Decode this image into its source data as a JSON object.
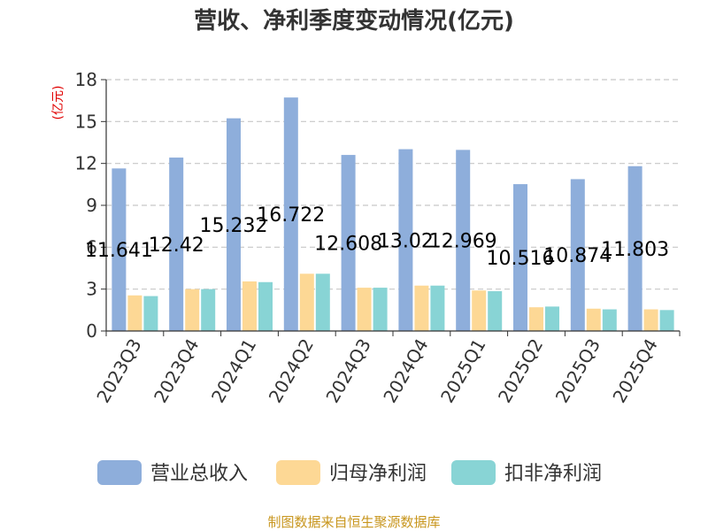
{
  "chart_data": {
    "type": "bar",
    "title": "营收、净利季度变动情况(亿元)",
    "ylabel": "(亿元)",
    "xlabel": "",
    "ylim": [
      0,
      18
    ],
    "yticks": [
      0,
      3,
      6,
      9,
      12,
      15,
      18
    ],
    "grid": true,
    "legend_position": "bottom",
    "categories": [
      "2023Q3",
      "2023Q4",
      "2024Q1",
      "2024Q2",
      "2024Q3",
      "2024Q4",
      "2025Q1",
      "2025Q2",
      "2025Q3",
      "2025Q4"
    ],
    "series": [
      {
        "name": "营业总收入",
        "color": "#8eaedb",
        "values": [
          11.641,
          12.42,
          15.232,
          16.722,
          12.608,
          13.02,
          12.969,
          10.516,
          10.874,
          11.803
        ],
        "labels": [
          "11.641",
          "12.42",
          "15.232",
          "16.722",
          "12.608",
          "13.02",
          "12.969",
          "10.516",
          "10.874",
          "11.803"
        ]
      },
      {
        "name": "归母净利润",
        "color": "#fdd895",
        "values": [
          2.55,
          3.0,
          3.55,
          4.1,
          3.1,
          3.25,
          2.9,
          1.7,
          1.6,
          1.55
        ]
      },
      {
        "name": "扣非净利润",
        "color": "#88d4d5",
        "values": [
          2.5,
          3.0,
          3.5,
          4.1,
          3.1,
          3.25,
          2.85,
          1.75,
          1.55,
          1.5
        ]
      }
    ]
  },
  "source": "制图数据来自恒生聚源数据库"
}
